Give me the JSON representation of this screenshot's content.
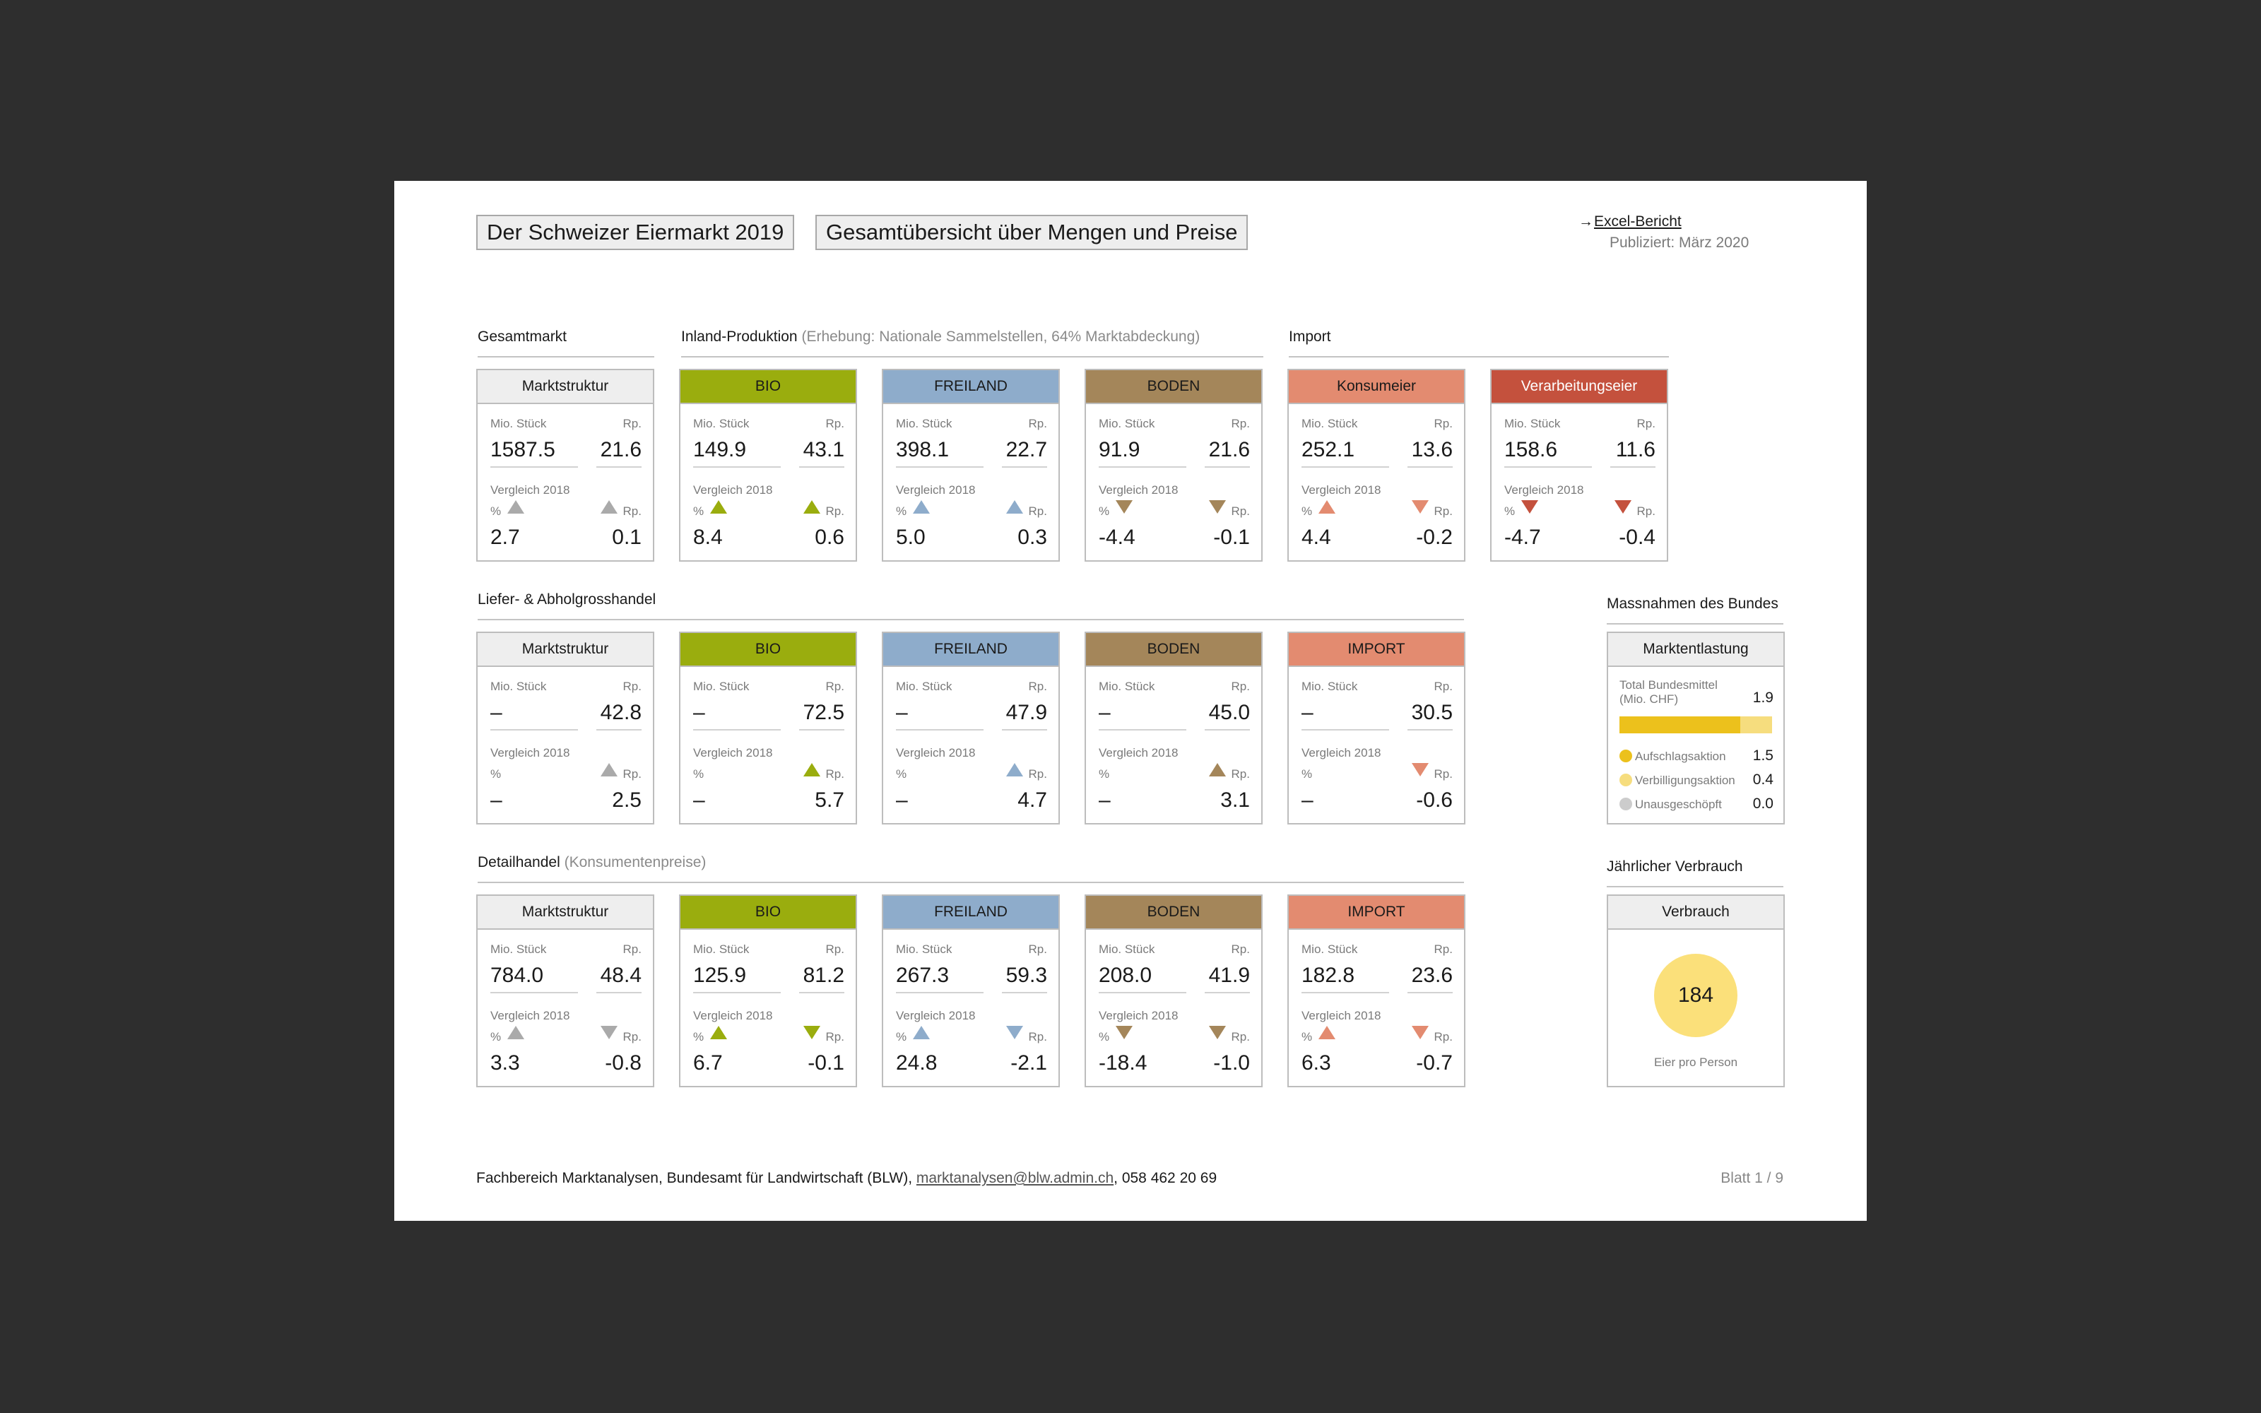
{
  "header": {
    "title": "Der Schweizer Eiermarkt 2019",
    "subtitle": "Gesamtübersicht über Mengen und Preise",
    "link_arrow": "→",
    "link_label": "Excel-Bericht",
    "published": "Publiziert: März 2020"
  },
  "labels": {
    "qty": "Mio. Stück",
    "price": "Rp.",
    "compare": "Vergleich 2018",
    "percent": "%"
  },
  "colors": {
    "gray": "#aaaaaa",
    "bio": "#9aad0e",
    "freiland": "#8eaccb",
    "boden": "#a4865a",
    "konsum": "#e38b70",
    "verarbeitung": "#c4513d"
  },
  "sections": [
    {
      "title": "Gesamtmarkt",
      "note": "",
      "cards": [
        {
          "label": "Marktstruktur",
          "color": "gray",
          "hdr_bg": "#eeeeee",
          "hdr_fg": "#1a1a1a",
          "qty": "1587.5",
          "price": "21.6",
          "qty_dir": "up",
          "price_dir": "up",
          "pct": "2.7",
          "rp": "0.1"
        }
      ]
    },
    {
      "title": "Inland-Produktion",
      "note": "(Erhebung: Nationale Sammelstellen, 64% Marktabdeckung)",
      "cards": [
        {
          "label": "BIO",
          "color": "bio",
          "hdr_bg": "#9aad0e",
          "hdr_fg": "#1a1a1a",
          "qty": "149.9",
          "price": "43.1",
          "qty_dir": "up",
          "price_dir": "up",
          "pct": "8.4",
          "rp": "0.6"
        },
        {
          "label": "FREILAND",
          "color": "freiland",
          "hdr_bg": "#8eaccb",
          "hdr_fg": "#1a1a1a",
          "qty": "398.1",
          "price": "22.7",
          "qty_dir": "up",
          "price_dir": "up",
          "pct": "5.0",
          "rp": "0.3"
        },
        {
          "label": "BODEN",
          "color": "boden",
          "hdr_bg": "#a4865a",
          "hdr_fg": "#1a1a1a",
          "qty": "91.9",
          "price": "21.6",
          "qty_dir": "down",
          "price_dir": "down",
          "pct": "-4.4",
          "rp": "-0.1"
        }
      ]
    },
    {
      "title": "Import",
      "note": "",
      "cards": [
        {
          "label": "Konsumeier",
          "color": "konsum",
          "hdr_bg": "#e38b70",
          "hdr_fg": "#1a1a1a",
          "qty": "252.1",
          "price": "13.6",
          "qty_dir": "up",
          "price_dir": "down",
          "pct": "4.4",
          "rp": "-0.2"
        },
        {
          "label": "Verarbeitungseier",
          "color": "verarbeitung",
          "hdr_bg": "#c4513d",
          "hdr_fg": "#ffffff",
          "qty": "158.6",
          "price": "11.6",
          "qty_dir": "down",
          "price_dir": "down",
          "pct": "-4.7",
          "rp": "-0.4"
        }
      ]
    },
    {
      "title": "Liefer- & Abholgrosshandel",
      "note": "",
      "cards": [
        {
          "label": "Marktstruktur",
          "color": "gray",
          "hdr_bg": "#eeeeee",
          "hdr_fg": "#1a1a1a",
          "qty": "–",
          "price": "42.8",
          "qty_dir": "",
          "price_dir": "up",
          "pct": "–",
          "rp": "2.5"
        },
        {
          "label": "BIO",
          "color": "bio",
          "hdr_bg": "#9aad0e",
          "hdr_fg": "#1a1a1a",
          "qty": "–",
          "price": "72.5",
          "qty_dir": "",
          "price_dir": "up",
          "pct": "–",
          "rp": "5.7"
        },
        {
          "label": "FREILAND",
          "color": "freiland",
          "hdr_bg": "#8eaccb",
          "hdr_fg": "#1a1a1a",
          "qty": "–",
          "price": "47.9",
          "qty_dir": "",
          "price_dir": "up",
          "pct": "–",
          "rp": "4.7"
        },
        {
          "label": "BODEN",
          "color": "boden",
          "hdr_bg": "#a4865a",
          "hdr_fg": "#1a1a1a",
          "qty": "–",
          "price": "45.0",
          "qty_dir": "",
          "price_dir": "up",
          "pct": "–",
          "rp": "3.1"
        },
        {
          "label": "IMPORT",
          "color": "konsum",
          "hdr_bg": "#e38b70",
          "hdr_fg": "#1a1a1a",
          "qty": "–",
          "price": "30.5",
          "qty_dir": "",
          "price_dir": "down",
          "pct": "–",
          "rp": "-0.6"
        }
      ]
    },
    {
      "title": "Detailhandel",
      "note": "(Konsumentenpreise)",
      "cards": [
        {
          "label": "Marktstruktur",
          "color": "gray",
          "hdr_bg": "#eeeeee",
          "hdr_fg": "#1a1a1a",
          "qty": "784.0",
          "price": "48.4",
          "qty_dir": "up",
          "price_dir": "down",
          "pct": "3.3",
          "rp": "-0.8"
        },
        {
          "label": "BIO",
          "color": "bio",
          "hdr_bg": "#9aad0e",
          "hdr_fg": "#1a1a1a",
          "qty": "125.9",
          "price": "81.2",
          "qty_dir": "up",
          "price_dir": "down",
          "pct": "6.7",
          "rp": "-0.1"
        },
        {
          "label": "FREILAND",
          "color": "freiland",
          "hdr_bg": "#8eaccb",
          "hdr_fg": "#1a1a1a",
          "qty": "267.3",
          "price": "59.3",
          "qty_dir": "up",
          "price_dir": "down",
          "pct": "24.8",
          "rp": "-2.1"
        },
        {
          "label": "BODEN",
          "color": "boden",
          "hdr_bg": "#a4865a",
          "hdr_fg": "#1a1a1a",
          "qty": "208.0",
          "price": "41.9",
          "qty_dir": "down",
          "price_dir": "down",
          "pct": "-18.4",
          "rp": "-1.0"
        },
        {
          "label": "IMPORT",
          "color": "konsum",
          "hdr_bg": "#e38b70",
          "hdr_fg": "#1a1a1a",
          "qty": "182.8",
          "price": "23.6",
          "qty_dir": "up",
          "price_dir": "down",
          "pct": "6.3",
          "rp": "-0.7"
        }
      ]
    }
  ],
  "massnahmen": {
    "title": "Massnahmen des Bundes",
    "card_label": "Marktentlastung",
    "total_label_1": "Total Bundesmittel",
    "total_label_2": "(Mio. CHF)",
    "total_value": "1.9",
    "bar_fill_fraction": 0.79,
    "items": [
      {
        "label": "Aufschlagsaktion",
        "value": "1.5",
        "color": "#ecc11c"
      },
      {
        "label": "Verbilligungsaktion",
        "value": "0.4",
        "color": "#f6dd7e"
      },
      {
        "label": "Unausgeschöpft",
        "value": "0.0",
        "color": "#cccccc"
      }
    ]
  },
  "verbrauch": {
    "title": "Jährlicher Verbrauch",
    "card_label": "Verbrauch",
    "value": "184",
    "caption": "Eier pro Person"
  },
  "footer": {
    "text_pre": "Fachbereich Marktanalysen, Bundesamt für Landwirtschaft (BLW), ",
    "email": "marktanalysen@blw.admin.ch",
    "text_post": ", 058 462 20 69",
    "page": "Blatt 1 / 9"
  }
}
